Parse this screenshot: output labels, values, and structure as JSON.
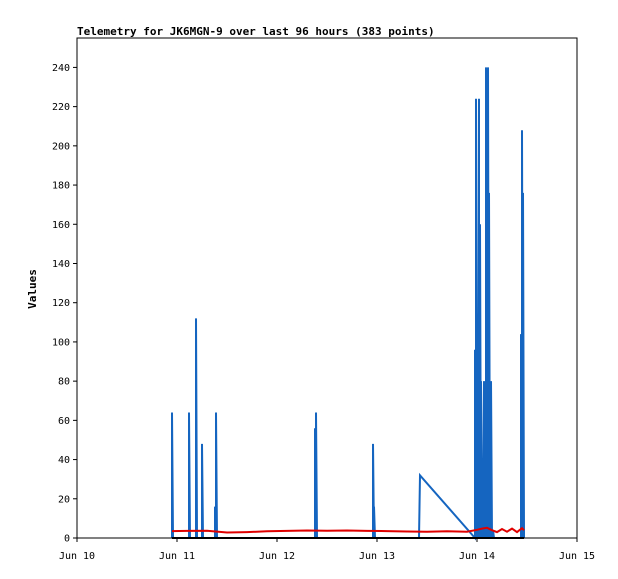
{
  "chart_data": {
    "type": "line",
    "title": "Telemetry for JK6MGN-9 over last 96 hours (383 points)",
    "ylabel": "Values",
    "xlabel": "",
    "xlim": [
      "Jun 10",
      "Jun 15"
    ],
    "ylim": [
      0,
      255
    ],
    "y_ticks": [
      0,
      20,
      40,
      60,
      80,
      100,
      120,
      140,
      160,
      180,
      200,
      220,
      240
    ],
    "x_ticks": [
      "Jun 10",
      "Jun 11",
      "Jun 12",
      "Jun 13",
      "Jun 14",
      "Jun 15"
    ],
    "grid": false,
    "legend": "none",
    "series": [
      {
        "color": "#1565c0",
        "x": [
          10.95,
          10.95,
          10.96,
          11.12,
          11.12,
          11.13,
          11.19,
          11.19,
          11.2,
          11.25,
          11.25,
          11.26,
          11.38,
          11.38,
          11.39,
          11.39,
          11.4,
          12.38,
          12.38,
          12.39,
          12.39,
          12.4,
          12.96,
          12.96,
          12.97,
          12.97,
          12.98,
          13.42,
          13.43,
          13.98,
          13.98,
          13.99,
          13.99,
          14.0,
          14.01,
          14.01,
          14.02,
          14.02,
          14.03,
          14.04,
          14.04,
          14.05,
          14.06,
          14.06,
          14.07,
          14.07,
          14.08,
          14.09,
          14.09,
          14.1,
          14.1,
          14.11,
          14.11,
          14.12,
          14.12,
          14.13,
          14.13,
          14.14,
          14.14,
          14.15,
          14.15,
          14.16,
          14.16,
          14.17,
          14.44,
          14.44,
          14.45,
          14.45,
          14.46,
          14.46,
          14.47,
          14.47
        ],
        "y": [
          0,
          64,
          0,
          0,
          64,
          0,
          0,
          112,
          0,
          0,
          48,
          0,
          0,
          16,
          0,
          64,
          0,
          0,
          56,
          0,
          64,
          0,
          0,
          48,
          0,
          16,
          0,
          0,
          32,
          0,
          96,
          0,
          224,
          0,
          80,
          0,
          224,
          0,
          160,
          0,
          80,
          0,
          40,
          0,
          80,
          0,
          48,
          0,
          240,
          0,
          240,
          0,
          240,
          0,
          176,
          0,
          80,
          0,
          80,
          0,
          4,
          0,
          4,
          0,
          0,
          104,
          0,
          208,
          0,
          176,
          0,
          4
        ]
      },
      {
        "color": "#e00000",
        "x": [
          10.95,
          11.1,
          11.3,
          11.5,
          11.7,
          11.9,
          12.1,
          12.3,
          12.5,
          12.7,
          12.9,
          13.1,
          13.3,
          13.5,
          13.7,
          13.9,
          14.0,
          14.05,
          14.1,
          14.15,
          14.2,
          14.25,
          14.3,
          14.35,
          14.4,
          14.45,
          14.47
        ],
        "y": [
          3.5,
          3.6,
          3.7,
          2.8,
          3.0,
          3.4,
          3.6,
          3.8,
          3.7,
          3.8,
          3.6,
          3.5,
          3.3,
          3.2,
          3.4,
          3.2,
          4.2,
          4.8,
          5.2,
          4.0,
          3.0,
          4.6,
          3.2,
          4.8,
          3.0,
          5.0,
          4.0
        ]
      },
      {
        "color": "#000000",
        "x": [
          10.95,
          14.47
        ],
        "y": [
          0,
          0
        ]
      }
    ]
  }
}
